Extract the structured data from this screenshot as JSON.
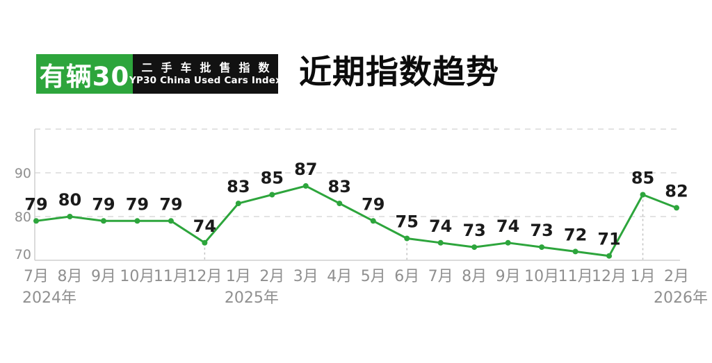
{
  "brand": {
    "name": "有辆30",
    "index_name_cn": "二手车批售指数",
    "index_name_en": "YP30 China Used Cars Index",
    "green_color": "#2da53c",
    "black_color": "#121212"
  },
  "page_title": "近期指数趋势",
  "chart_data": {
    "type": "line",
    "title": "近期指数趋势",
    "categories": [
      "7月",
      "8月",
      "9月",
      "10月",
      "11月",
      "12月",
      "1月",
      "2月",
      "3月",
      "4月",
      "5月",
      "6月",
      "7月",
      "8月",
      "9月",
      "10月",
      "11月",
      "12月",
      "1月",
      "2月"
    ],
    "values": [
      79,
      80,
      79,
      79,
      79,
      74,
      83,
      85,
      87,
      83,
      79,
      75,
      74,
      73,
      74,
      73,
      72,
      71,
      85,
      82
    ],
    "year_labels": [
      {
        "label": "2024年",
        "index": 0,
        "align": "start"
      },
      {
        "label": "2025年",
        "index": 6,
        "align": "start"
      },
      {
        "label": "2026年",
        "index": 18,
        "align": "end"
      }
    ],
    "y_ticks": [
      90,
      80,
      70
    ],
    "ylim": [
      70,
      100
    ],
    "grid": "horizontal-dashed",
    "legend": "none",
    "drop_line_indices": [
      5,
      11,
      18
    ],
    "series_color": "#2da53c",
    "value_label_color": "#1a1a1a",
    "tick_label_color": "#8f8f8f",
    "grid_color": "#dadada",
    "axis_color": "#cfcfcf",
    "drop_line_color": "#c2c2c2"
  }
}
